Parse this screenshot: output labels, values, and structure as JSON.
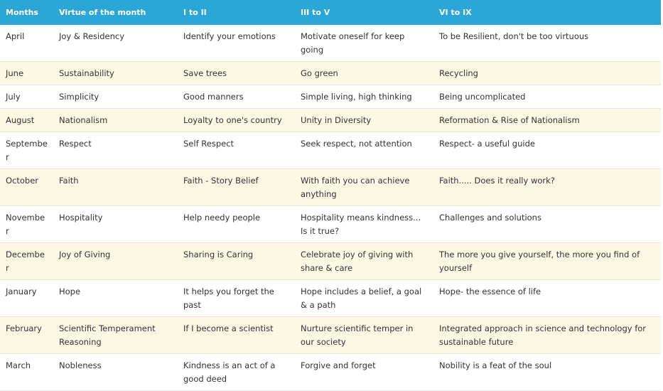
{
  "table": {
    "headers": [
      "Months",
      "Virtue of the month",
      "I to II",
      "III to V",
      "VI to IX"
    ],
    "rows": [
      [
        "April",
        "Joy & Residency",
        "Identify your emotions",
        "Motivate oneself for keep going",
        "To be Resilient, don't be too virtuous"
      ],
      [
        "June",
        "Sustainability",
        "Save trees",
        "Go green",
        "Recycling"
      ],
      [
        "July",
        "Simplicity",
        "Good manners",
        "Simple living, high thinking",
        "Being uncomplicated"
      ],
      [
        "August",
        "Nationalism",
        "Loyalty to one's country",
        "Unity in Diversity",
        "Reformation & Rise of Nationalism"
      ],
      [
        "September",
        "Respect",
        "Self Respect",
        "Seek respect, not attention",
        "Respect- a useful guide"
      ],
      [
        "October",
        "Faith",
        "Faith - Story Belief",
        "With faith you can achieve anything",
        "Faith..... Does it really work?"
      ],
      [
        "November",
        "Hospitality",
        "Help needy people",
        "Hospitality means kindness... Is it true?",
        "Challenges and solutions"
      ],
      [
        "December",
        "Joy of Giving",
        "Sharing is Caring",
        "Celebrate joy of giving with share & care",
        "The more you give yourself, the more you find of yourself"
      ],
      [
        "January",
        "Hope",
        "It helps you forget the past",
        "Hope includes a belief, a goal & a path",
        "Hope- the essence of life"
      ],
      [
        "February",
        "Scientific Temperament Reasoning",
        "If I become a scientist",
        "Nurture scientific temper in our society",
        "Integrated approach in science and technology for sustainable future"
      ],
      [
        "March",
        "Nobleness",
        "Kindness is an act of a good deed",
        "Forgive and forget",
        "Nobility is a feat of the soul"
      ]
    ]
  }
}
